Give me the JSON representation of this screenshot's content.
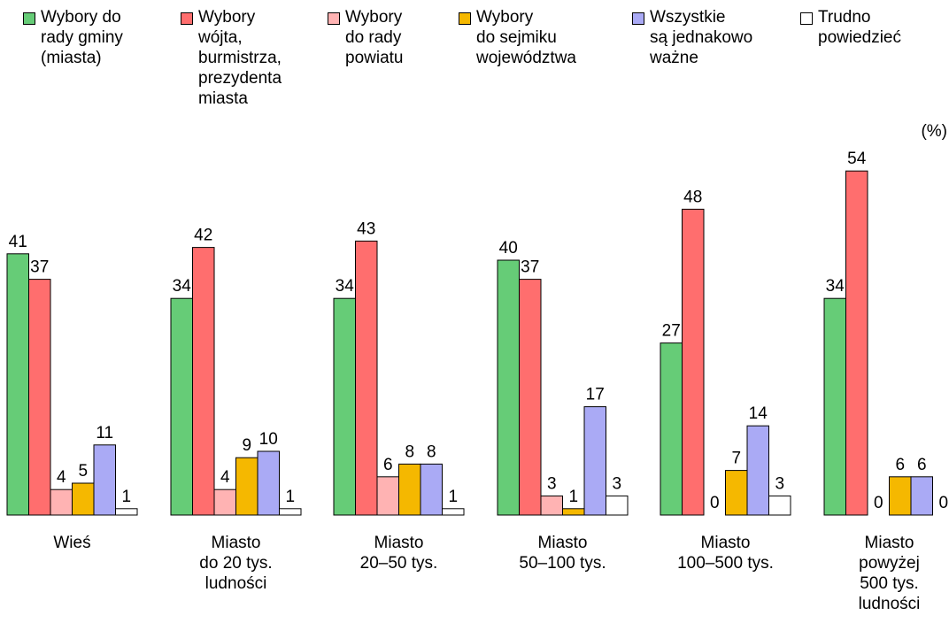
{
  "unit_label": "(%)",
  "chart_data": {
    "type": "bar",
    "ylim": [
      0,
      60
    ],
    "grid": false,
    "legend_position": "top",
    "categories": [
      "Wieś",
      "Miasto\ndo 20 tys.\nludności",
      "Miasto\n20–50 tys.",
      "Miasto\n50–100 tys.",
      "Miasto\n100–500 tys.",
      "Miasto\npowyżej\n500 tys.\nludności"
    ],
    "series": [
      {
        "name": "Wybory do\nrady gminy\n(miasta)",
        "color": "#66cc77",
        "values": [
          41,
          34,
          34,
          40,
          27,
          34
        ]
      },
      {
        "name": "Wybory\nwójta,\nburmistrza,\nprezydenta\nmiasta",
        "color": "#ff6e6e",
        "values": [
          37,
          42,
          43,
          37,
          48,
          54
        ]
      },
      {
        "name": "Wybory\ndo rady\npowiatu",
        "color": "#ffb3b3",
        "values": [
          4,
          4,
          6,
          3,
          0,
          0
        ]
      },
      {
        "name": "Wybory\ndo sejmiku\nwojewództwa",
        "color": "#f5b800",
        "values": [
          5,
          9,
          8,
          1,
          7,
          6
        ]
      },
      {
        "name": "Wszystkie\nsą jednakowo\nważne",
        "color": "#aaaaf5",
        "values": [
          11,
          10,
          8,
          17,
          14,
          6
        ]
      },
      {
        "name": "Trudno\npowiedzieć",
        "color": "#ffffff",
        "values": [
          1,
          1,
          1,
          3,
          3,
          0
        ]
      }
    ]
  }
}
